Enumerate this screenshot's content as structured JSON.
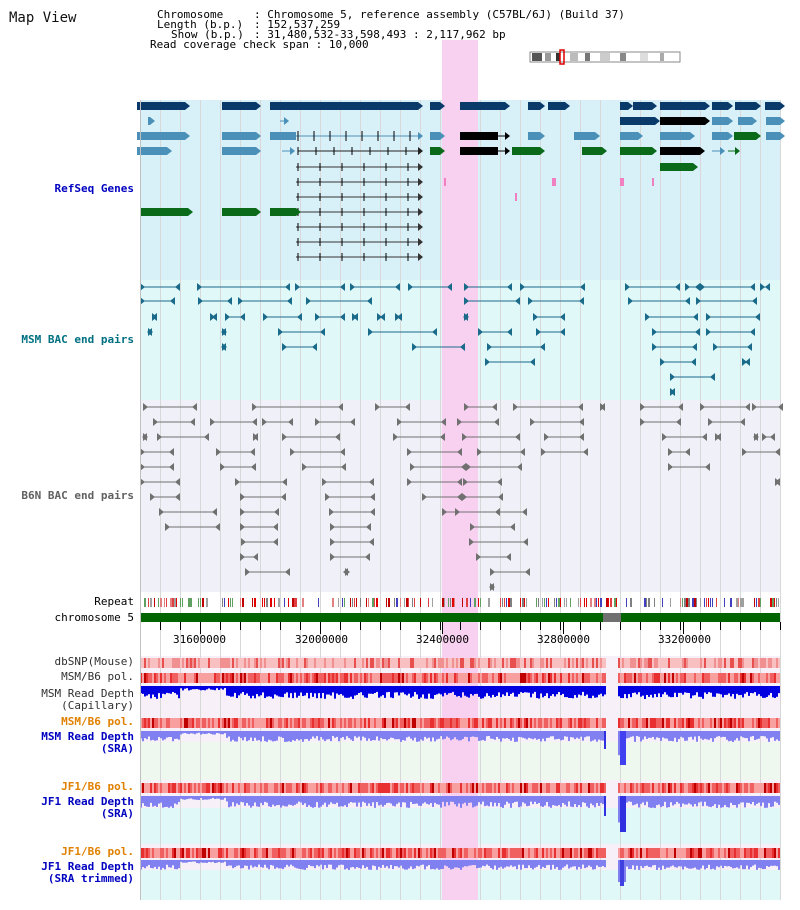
{
  "app": {
    "title": "Map View"
  },
  "info": {
    "chromosome_label": "Chromosome",
    "chromosome_value": "Chromosome 5, reference assembly (C57BL/6J) (Build 37)",
    "length_label": "Length (b.p.)",
    "length_value": "152,537,259",
    "show_label": "Show (b.p.)",
    "show_value": "31,480,532-33,598,493 : 2,117,962 bp",
    "coverage_label": "Read coverage check span",
    "coverage_value": "10,000"
  },
  "tracks": {
    "refseq": "RefSeq Genes",
    "msm_bac": "MSM BAC end pairs",
    "b6n_bac": "B6N BAC end pairs",
    "repeat": "Repeat",
    "chromosome": "chromosome 5",
    "dbsnp": "dbSNP(Mouse)",
    "msm_b6_pol_1": "MSM/B6 pol.",
    "msm_read_depth_cap_1": "MSM Read Depth",
    "msm_read_depth_cap_2": "(Capillary)",
    "msm_b6_pol_2": "MSM/B6 pol.",
    "msm_read_depth_sra_1": "MSM Read Depth",
    "msm_read_depth_sra_2": "(SRA)",
    "jf1_b6_pol_1": "JF1/B6 pol.",
    "jf1_read_depth_sra_1": "JF1 Read Depth",
    "jf1_read_depth_sra_2": "(SRA)",
    "jf1_b6_pol_2": "JF1/B6 pol.",
    "jf1_read_depth_trim_1": "JF1 Read Depth",
    "jf1_read_depth_trim_2": "(SRA trimmed)"
  },
  "axis": {
    "ticks": [
      "31600000",
      "32000000",
      "32400000",
      "32800000",
      "33200000"
    ]
  },
  "colors": {
    "highlight": "#f8d0f0",
    "refseq_bg": "#d8f0f8",
    "msm_bg": "#e0f8f8",
    "b6n_bg": "#f0f0f8",
    "chromosome": "#006400",
    "label_blue": "#0000c0",
    "label_orange": "#e08000",
    "label_teal": "#007080",
    "depth_blue": "#0000e0",
    "depth_lavender": "#8080f0"
  }
}
